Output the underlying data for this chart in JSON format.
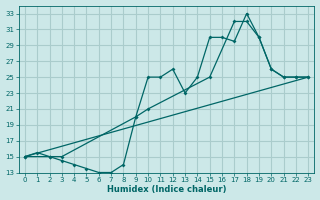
{
  "xlabel": "Humidex (Indice chaleur)",
  "ylabel": "",
  "bg_color": "#cce8e8",
  "grid_color": "#aacccc",
  "line_color": "#006666",
  "xlim": [
    -0.5,
    23.5
  ],
  "ylim": [
    13,
    34
  ],
  "xticks": [
    0,
    1,
    2,
    3,
    4,
    5,
    6,
    7,
    8,
    9,
    10,
    11,
    12,
    13,
    14,
    15,
    16,
    17,
    18,
    19,
    20,
    21,
    22,
    23
  ],
  "yticks": [
    13,
    15,
    17,
    19,
    21,
    23,
    25,
    27,
    29,
    31,
    33
  ],
  "line1_x": [
    0,
    1,
    2,
    3,
    4,
    5,
    6,
    7,
    8,
    9,
    10,
    11,
    12,
    13,
    14,
    15,
    16,
    17,
    18,
    19,
    20,
    21,
    22,
    23
  ],
  "line1_y": [
    15,
    15.5,
    15,
    14.5,
    14,
    13.5,
    13,
    13,
    14,
    20,
    25,
    25,
    26,
    23,
    25,
    30,
    30,
    29.5,
    33,
    30,
    26,
    25,
    25,
    25
  ],
  "line2_x": [
    0,
    2,
    3,
    9,
    10,
    15,
    17,
    18,
    19,
    20,
    21,
    22,
    23
  ],
  "line2_y": [
    15,
    15,
    15,
    20,
    21,
    25,
    32,
    32,
    30,
    26,
    25,
    25,
    25
  ],
  "line3_x": [
    0,
    23
  ],
  "line3_y": [
    15,
    25
  ]
}
